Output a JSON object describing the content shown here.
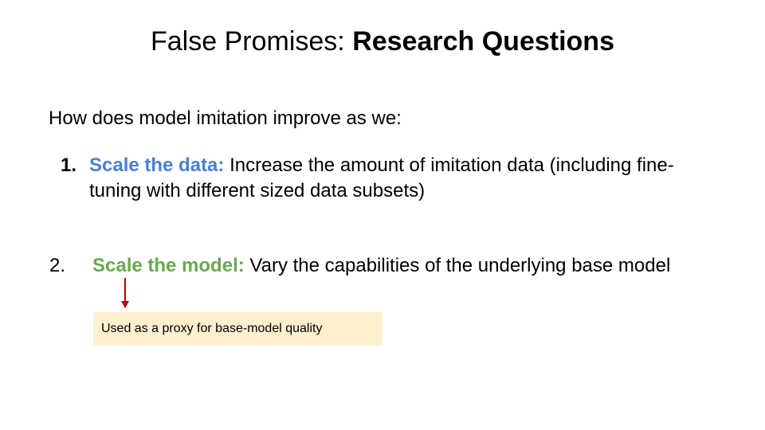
{
  "title": {
    "prefix": "False Promises: ",
    "bold": "Research Questions"
  },
  "intro": "How does model imitation improve as we:",
  "items": [
    {
      "number": "1.",
      "highlight": "Scale the data:",
      "text": " Increase the amount of imitation data (including fine-tuning with different sized data subsets)"
    },
    {
      "number": "2.",
      "highlight": "Scale the model:",
      "text": " Vary the capabilities of the underlying base model"
    }
  ],
  "note": "Used as a proxy for base-model quality",
  "colors": {
    "item1_highlight": "#4a7fd1",
    "item2_highlight": "#6aa84f",
    "arrow": "#c00000",
    "note_background": "#fdf0cf"
  }
}
